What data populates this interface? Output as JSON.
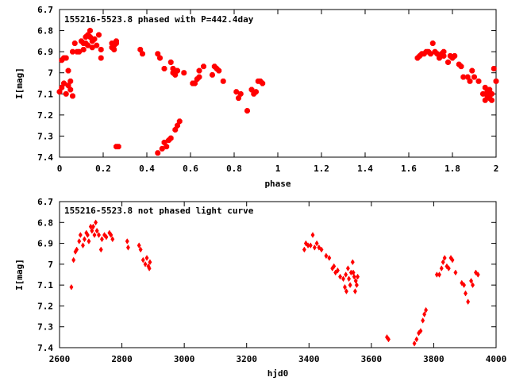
{
  "chart_data": [
    {
      "type": "scatter",
      "title": "155216-5523.8 phased with P=442.4day",
      "xlabel": "phase",
      "ylabel": "I[mag]",
      "xlim": [
        0,
        2
      ],
      "ylim": [
        6.7,
        7.4
      ],
      "y_inverted": true,
      "marker": "star",
      "color": "#ff0000",
      "xticks": [
        "0",
        "0.2",
        "0.4",
        "0.6",
        "0.8",
        "1",
        "1.2",
        "1.4",
        "1.6",
        "1.8",
        "2"
      ],
      "yticks": [
        "6.7",
        "6.8",
        "6.9",
        "7",
        "7.1",
        "7.2",
        "7.3",
        "7.4"
      ],
      "series": [
        {
          "points": [
            [
              0.0,
              7.09
            ],
            [
              0.01,
              6.94
            ],
            [
              0.01,
              7.07
            ],
            [
              0.02,
              6.93
            ],
            [
              0.02,
              7.05
            ],
            [
              0.03,
              6.93
            ],
            [
              0.03,
              7.1
            ],
            [
              0.04,
              6.99
            ],
            [
              0.04,
              7.06
            ],
            [
              0.05,
              7.04
            ],
            [
              0.05,
              7.08
            ],
            [
              0.06,
              6.9
            ],
            [
              0.06,
              7.11
            ],
            [
              0.07,
              6.86
            ],
            [
              0.08,
              6.9
            ],
            [
              0.09,
              6.9
            ],
            [
              0.1,
              6.85
            ],
            [
              0.11,
              6.89
            ],
            [
              0.11,
              6.86
            ],
            [
              0.12,
              6.86
            ],
            [
              0.12,
              6.83
            ],
            [
              0.13,
              6.82
            ],
            [
              0.13,
              6.87
            ],
            [
              0.14,
              6.83
            ],
            [
              0.14,
              6.8
            ],
            [
              0.15,
              6.85
            ],
            [
              0.15,
              6.88
            ],
            [
              0.16,
              6.84
            ],
            [
              0.17,
              6.87
            ],
            [
              0.18,
              6.82
            ],
            [
              0.19,
              6.93
            ],
            [
              0.19,
              6.89
            ],
            [
              0.24,
              6.86
            ],
            [
              0.24,
              6.88
            ],
            [
              0.25,
              6.87
            ],
            [
              0.25,
              6.89
            ],
            [
              0.26,
              6.86
            ],
            [
              0.26,
              6.85
            ],
            [
              0.26,
              7.35
            ],
            [
              0.27,
              7.35
            ],
            [
              0.37,
              6.89
            ],
            [
              0.38,
              6.91
            ],
            [
              0.45,
              7.38
            ],
            [
              0.45,
              6.91
            ],
            [
              0.46,
              6.93
            ],
            [
              0.47,
              7.36
            ],
            [
              0.48,
              7.33
            ],
            [
              0.48,
              6.98
            ],
            [
              0.49,
              7.35
            ],
            [
              0.5,
              7.32
            ],
            [
              0.51,
              7.31
            ],
            [
              0.51,
              6.95
            ],
            [
              0.52,
              7.0
            ],
            [
              0.52,
              6.98
            ],
            [
              0.53,
              7.27
            ],
            [
              0.53,
              7.01
            ],
            [
              0.54,
              7.25
            ],
            [
              0.54,
              6.99
            ],
            [
              0.55,
              7.23
            ],
            [
              0.57,
              7.0
            ],
            [
              0.61,
              7.05
            ],
            [
              0.62,
              7.05
            ],
            [
              0.63,
              7.03
            ],
            [
              0.64,
              7.02
            ],
            [
              0.64,
              6.99
            ],
            [
              0.66,
              6.97
            ],
            [
              0.7,
              7.01
            ],
            [
              0.71,
              6.97
            ],
            [
              0.72,
              6.98
            ],
            [
              0.73,
              6.99
            ],
            [
              0.75,
              7.04
            ],
            [
              0.81,
              7.09
            ],
            [
              0.82,
              7.12
            ],
            [
              0.83,
              7.1
            ],
            [
              0.86,
              7.18
            ],
            [
              0.88,
              7.08
            ],
            [
              0.89,
              7.1
            ],
            [
              0.9,
              7.09
            ],
            [
              0.91,
              7.04
            ],
            [
              0.92,
              7.04
            ],
            [
              0.93,
              7.05
            ],
            [
              1.64,
              6.93
            ],
            [
              1.65,
              6.92
            ],
            [
              1.66,
              6.91
            ],
            [
              1.67,
              6.91
            ],
            [
              1.68,
              6.9
            ],
            [
              1.69,
              6.9
            ],
            [
              1.7,
              6.91
            ],
            [
              1.71,
              6.86
            ],
            [
              1.72,
              6.9
            ],
            [
              1.73,
              6.91
            ],
            [
              1.74,
              6.93
            ],
            [
              1.75,
              6.91
            ],
            [
              1.76,
              6.92
            ],
            [
              1.76,
              6.9
            ],
            [
              1.78,
              6.95
            ],
            [
              1.79,
              6.92
            ],
            [
              1.8,
              6.93
            ],
            [
              1.81,
              6.92
            ],
            [
              1.83,
              6.96
            ],
            [
              1.84,
              6.97
            ],
            [
              1.85,
              7.02
            ],
            [
              1.87,
              7.02
            ],
            [
              1.88,
              7.04
            ],
            [
              1.89,
              6.99
            ],
            [
              1.9,
              7.02
            ],
            [
              1.92,
              7.04
            ],
            [
              1.94,
              7.1
            ],
            [
              1.95,
              7.07
            ],
            [
              1.95,
              7.13
            ],
            [
              1.96,
              7.11
            ],
            [
              1.96,
              7.09
            ],
            [
              1.97,
              7.08
            ],
            [
              1.97,
              7.12
            ],
            [
              1.98,
              7.1
            ],
            [
              1.98,
              7.13
            ],
            [
              1.99,
              6.98
            ],
            [
              2.0,
              7.04
            ]
          ]
        }
      ]
    },
    {
      "type": "scatter",
      "title": "155216-5523.8 not phased light curve",
      "xlabel": "hjd0",
      "ylabel": "I[mag]",
      "xlim": [
        2600,
        4000
      ],
      "ylim": [
        6.7,
        7.4
      ],
      "y_inverted": true,
      "marker": "diamond",
      "color": "#ff0000",
      "xticks": [
        "2600",
        "2800",
        "3000",
        "3200",
        "3400",
        "3600",
        "3800",
        "4000"
      ],
      "yticks": [
        "6.7",
        "6.8",
        "6.9",
        "7",
        "7.1",
        "7.2",
        "7.3",
        "7.4"
      ],
      "series": [
        {
          "points": [
            [
              2638,
              7.11
            ],
            [
              2645,
              6.98
            ],
            [
              2651,
              6.94
            ],
            [
              2655,
              6.93
            ],
            [
              2663,
              6.89
            ],
            [
              2667,
              6.86
            ],
            [
              2675,
              6.91
            ],
            [
              2680,
              6.88
            ],
            [
              2686,
              6.85
            ],
            [
              2690,
              6.86
            ],
            [
              2694,
              6.89
            ],
            [
              2700,
              6.82
            ],
            [
              2704,
              6.84
            ],
            [
              2708,
              6.82
            ],
            [
              2712,
              6.86
            ],
            [
              2716,
              6.8
            ],
            [
              2720,
              6.84
            ],
            [
              2726,
              6.86
            ],
            [
              2733,
              6.93
            ],
            [
              2736,
              6.88
            ],
            [
              2744,
              6.86
            ],
            [
              2750,
              6.87
            ],
            [
              2760,
              6.85
            ],
            [
              2765,
              6.86
            ],
            [
              2770,
              6.88
            ],
            [
              2817,
              6.89
            ],
            [
              2820,
              6.92
            ],
            [
              2855,
              6.91
            ],
            [
              2860,
              6.93
            ],
            [
              2868,
              6.98
            ],
            [
              2875,
              7.0
            ],
            [
              2880,
              6.97
            ],
            [
              2885,
              7.01
            ],
            [
              2888,
              7.02
            ],
            [
              2890,
              6.99
            ],
            [
              3385,
              6.93
            ],
            [
              3390,
              6.9
            ],
            [
              3397,
              6.91
            ],
            [
              3405,
              6.91
            ],
            [
              3412,
              6.86
            ],
            [
              3418,
              6.92
            ],
            [
              3425,
              6.9
            ],
            [
              3432,
              6.92
            ],
            [
              3440,
              6.93
            ],
            [
              3455,
              6.96
            ],
            [
              3465,
              6.97
            ],
            [
              3475,
              7.02
            ],
            [
              3480,
              7.01
            ],
            [
              3485,
              7.04
            ],
            [
              3492,
              7.03
            ],
            [
              3500,
              7.06
            ],
            [
              3510,
              7.07
            ],
            [
              3515,
              7.11
            ],
            [
              3518,
              7.05
            ],
            [
              3520,
              7.13
            ],
            [
              3525,
              7.02
            ],
            [
              3528,
              7.07
            ],
            [
              3532,
              7.1
            ],
            [
              3535,
              7.04
            ],
            [
              3540,
              6.99
            ],
            [
              3542,
              7.04
            ],
            [
              3545,
              7.06
            ],
            [
              3548,
              7.13
            ],
            [
              3550,
              7.08
            ],
            [
              3553,
              7.1
            ],
            [
              3556,
              7.06
            ],
            [
              3650,
              7.35
            ],
            [
              3655,
              7.36
            ],
            [
              3738,
              7.38
            ],
            [
              3745,
              7.36
            ],
            [
              3752,
              7.33
            ],
            [
              3758,
              7.32
            ],
            [
              3765,
              7.27
            ],
            [
              3770,
              7.24
            ],
            [
              3775,
              7.22
            ],
            [
              3810,
              7.05
            ],
            [
              3818,
              7.05
            ],
            [
              3825,
              7.02
            ],
            [
              3830,
              6.99
            ],
            [
              3835,
              6.97
            ],
            [
              3842,
              7.01
            ],
            [
              3848,
              7.02
            ],
            [
              3855,
              6.97
            ],
            [
              3860,
              6.98
            ],
            [
              3870,
              7.04
            ],
            [
              3890,
              7.09
            ],
            [
              3897,
              7.1
            ],
            [
              3902,
              7.14
            ],
            [
              3910,
              7.18
            ],
            [
              3920,
              7.08
            ],
            [
              3925,
              7.1
            ],
            [
              3935,
              7.04
            ],
            [
              3942,
              7.05
            ]
          ]
        }
      ]
    }
  ]
}
